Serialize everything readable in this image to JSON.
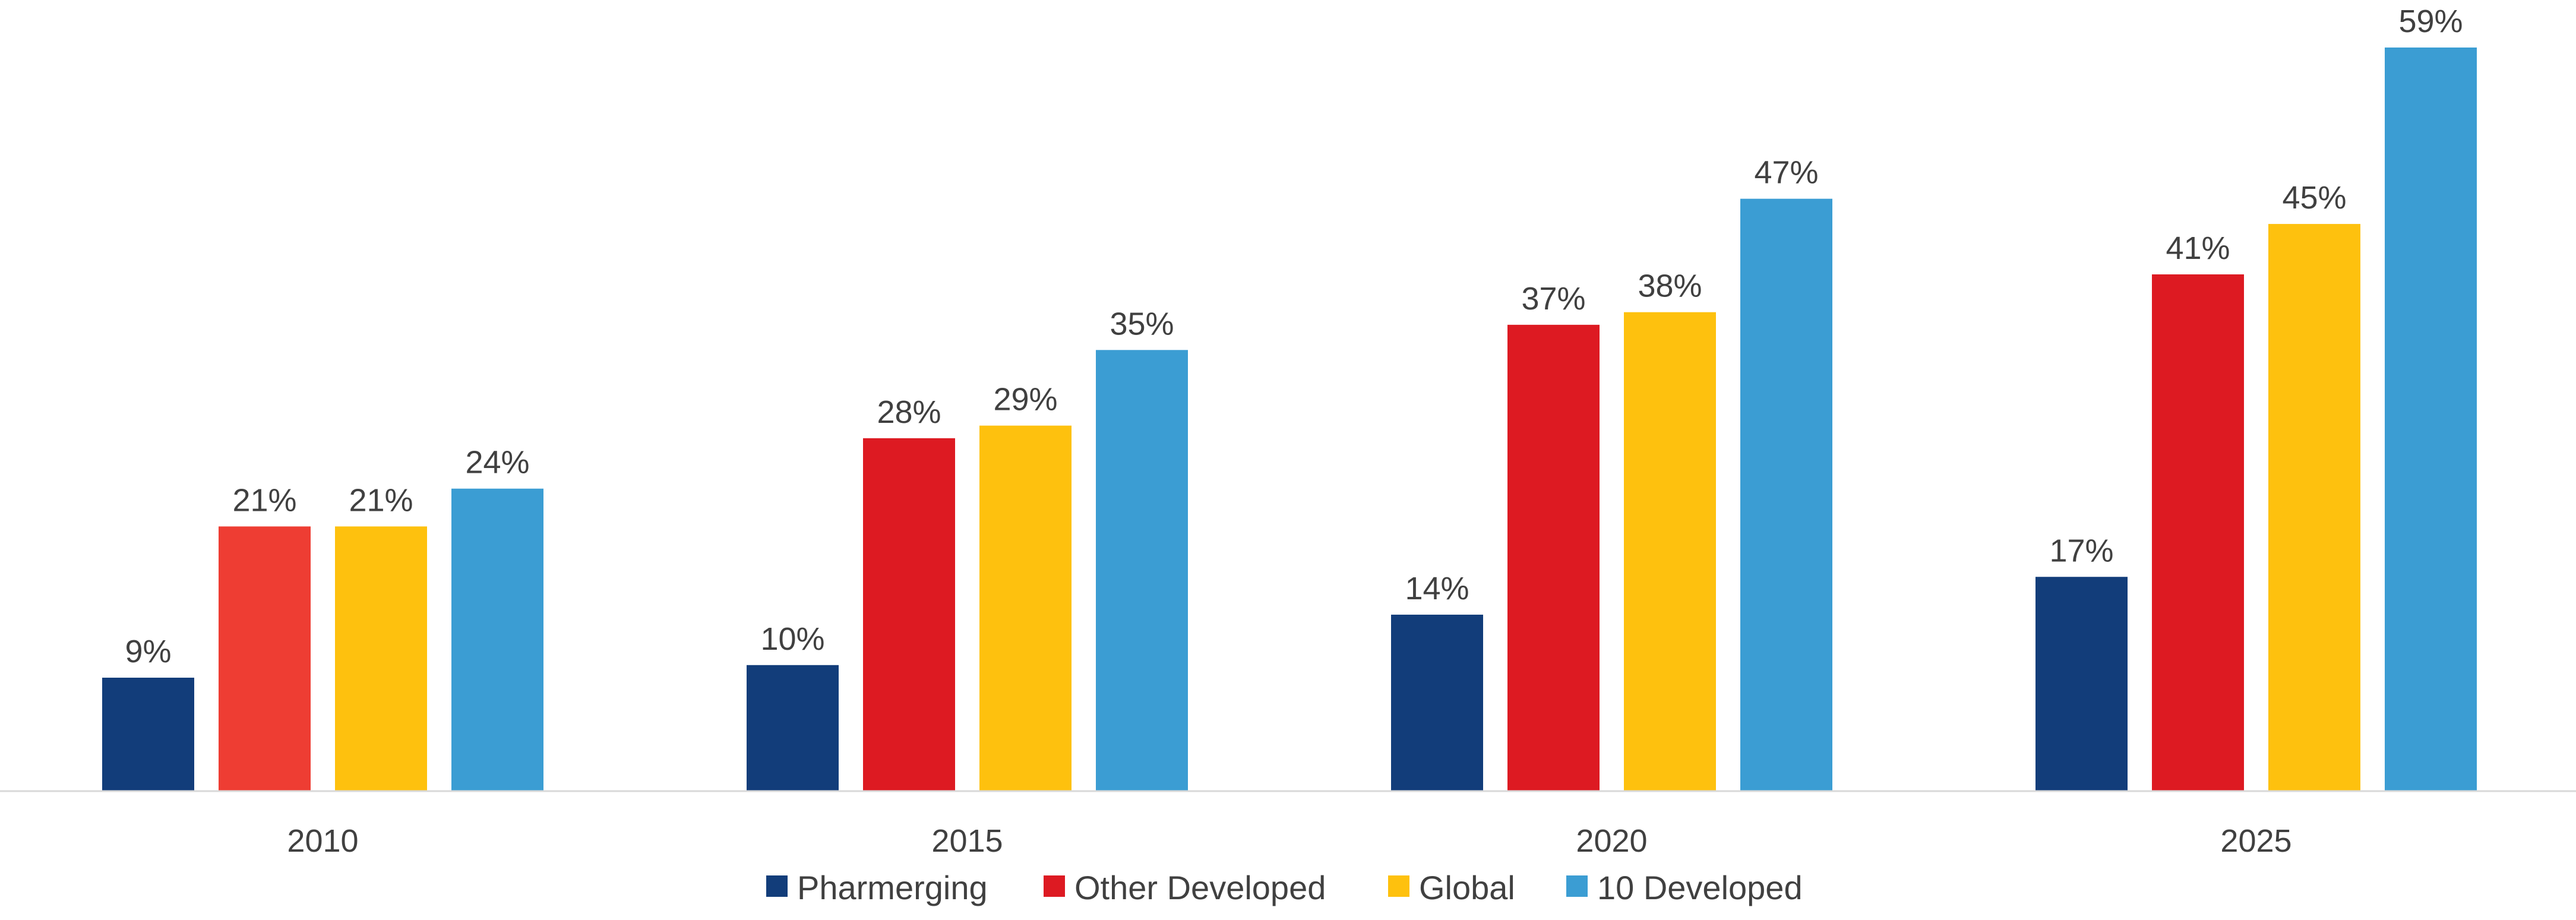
{
  "chart_data": {
    "type": "bar",
    "categories": [
      "2010",
      "2015",
      "2020",
      "2025"
    ],
    "series": [
      {
        "name": "Pharmerging",
        "color": "#123d7a",
        "values": [
          9,
          10,
          14,
          17
        ],
        "labels": [
          "9%",
          "10%",
          "14%",
          "17%"
        ]
      },
      {
        "name": "Other Developed",
        "color": "#dd1a22",
        "point_colors": [
          "#ee3d33",
          "#dd1a22",
          "#dd1a22",
          "#dd1a22"
        ],
        "values": [
          21,
          28,
          37,
          41
        ],
        "labels": [
          "21%",
          "28%",
          "37%",
          "41%"
        ]
      },
      {
        "name": "Global",
        "color": "#fec10e",
        "values": [
          21,
          29,
          38,
          45
        ],
        "labels": [
          "21%",
          "29%",
          "38%",
          "45%"
        ]
      },
      {
        "name": "10 Developed",
        "color": "#3b9dd3",
        "values": [
          24,
          35,
          47,
          59
        ],
        "labels": [
          "24%",
          "35%",
          "47%",
          "59%"
        ]
      }
    ],
    "ylim": [
      0,
      59
    ],
    "y_axis_shown": false,
    "grid": false,
    "legend_position": "bottom"
  }
}
